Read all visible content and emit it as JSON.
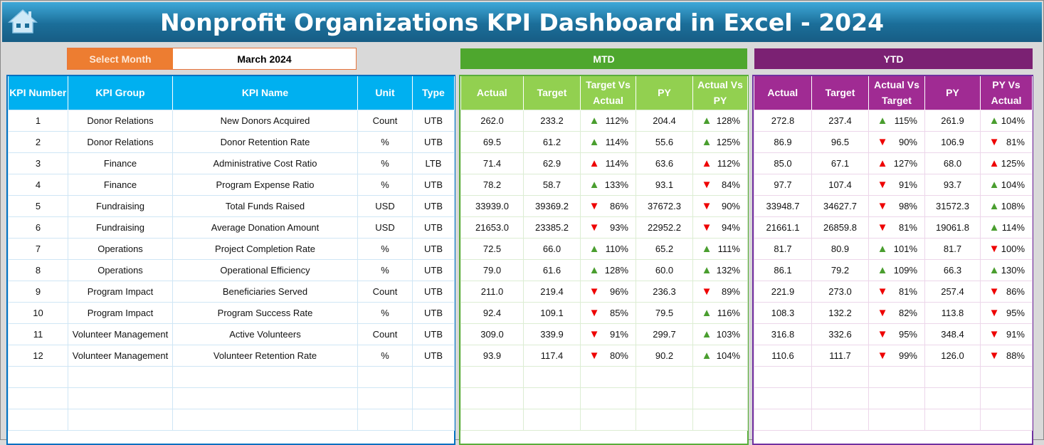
{
  "header": {
    "title": "Nonprofit Organizations KPI Dashboard in Excel - 2024",
    "home_icon": "home-icon"
  },
  "selector": {
    "label": "Select Month",
    "value": "March 2024"
  },
  "sections": {
    "mtd": "MTD",
    "ytd": "YTD"
  },
  "colors": {
    "title_bar": "#1b6e99",
    "select_label": "#ed7d31",
    "mtd_band": "#4ea72e",
    "mtd_header": "#92d050",
    "ytd_band": "#7b2173",
    "ytd_header": "#a02b93",
    "kpi_header": "#00b0f0",
    "arrow_green": "#4a9e2f",
    "arrow_red": "#e00000"
  },
  "kpi_columns": [
    "KPI Number",
    "KPI Group",
    "KPI Name",
    "Unit",
    "Type"
  ],
  "mtd_columns": [
    "Actual",
    "Target",
    "Target Vs Actual",
    "PY",
    "Actual Vs PY"
  ],
  "ytd_columns": [
    "Actual",
    "Target",
    "Actual Vs Target",
    "PY",
    "PY Vs Actual"
  ],
  "kpis": [
    [
      "1",
      "Donor Relations",
      "New Donors Acquired",
      "Count",
      "UTB"
    ],
    [
      "2",
      "Donor Relations",
      "Donor Retention Rate",
      "%",
      "UTB"
    ],
    [
      "3",
      "Finance",
      "Administrative Cost Ratio",
      "%",
      "LTB"
    ],
    [
      "4",
      "Finance",
      "Program Expense Ratio",
      "%",
      "UTB"
    ],
    [
      "5",
      "Fundraising",
      "Total Funds Raised",
      "USD",
      "UTB"
    ],
    [
      "6",
      "Fundraising",
      "Average Donation Amount",
      "USD",
      "UTB"
    ],
    [
      "7",
      "Operations",
      "Project Completion Rate",
      "%",
      "UTB"
    ],
    [
      "8",
      "Operations",
      "Operational Efficiency",
      "%",
      "UTB"
    ],
    [
      "9",
      "Program Impact",
      "Beneficiaries Served",
      "Count",
      "UTB"
    ],
    [
      "10",
      "Program Impact",
      "Program Success Rate",
      "%",
      "UTB"
    ],
    [
      "11",
      "Volunteer Management",
      "Active Volunteers",
      "Count",
      "UTB"
    ],
    [
      "12",
      "Volunteer Management",
      "Volunteer Retention Rate",
      "%",
      "UTB"
    ]
  ],
  "mtd": [
    {
      "actual": "262.0",
      "target": "233.2",
      "tva": "112%",
      "tva_icon": "up-green",
      "py": "204.4",
      "avp": "128%",
      "avp_icon": "up-green"
    },
    {
      "actual": "69.5",
      "target": "61.2",
      "tva": "114%",
      "tva_icon": "up-green",
      "py": "55.6",
      "avp": "125%",
      "avp_icon": "up-green"
    },
    {
      "actual": "71.4",
      "target": "62.9",
      "tva": "114%",
      "tva_icon": "up-red",
      "py": "63.6",
      "avp": "112%",
      "avp_icon": "up-red"
    },
    {
      "actual": "78.2",
      "target": "58.7",
      "tva": "133%",
      "tva_icon": "up-green",
      "py": "93.1",
      "avp": "84%",
      "avp_icon": "down-red"
    },
    {
      "actual": "33939.0",
      "target": "39369.2",
      "tva": "86%",
      "tva_icon": "down-red",
      "py": "37672.3",
      "avp": "90%",
      "avp_icon": "down-red"
    },
    {
      "actual": "21653.0",
      "target": "23385.2",
      "tva": "93%",
      "tva_icon": "down-red",
      "py": "22952.2",
      "avp": "94%",
      "avp_icon": "down-red"
    },
    {
      "actual": "72.5",
      "target": "66.0",
      "tva": "110%",
      "tva_icon": "up-green",
      "py": "65.2",
      "avp": "111%",
      "avp_icon": "up-green"
    },
    {
      "actual": "79.0",
      "target": "61.6",
      "tva": "128%",
      "tva_icon": "up-green",
      "py": "60.0",
      "avp": "132%",
      "avp_icon": "up-green"
    },
    {
      "actual": "211.0",
      "target": "219.4",
      "tva": "96%",
      "tva_icon": "down-red",
      "py": "236.3",
      "avp": "89%",
      "avp_icon": "down-red"
    },
    {
      "actual": "92.4",
      "target": "109.1",
      "tva": "85%",
      "tva_icon": "down-red",
      "py": "79.5",
      "avp": "116%",
      "avp_icon": "up-green"
    },
    {
      "actual": "309.0",
      "target": "339.9",
      "tva": "91%",
      "tva_icon": "down-red",
      "py": "299.7",
      "avp": "103%",
      "avp_icon": "up-green"
    },
    {
      "actual": "93.9",
      "target": "117.4",
      "tva": "80%",
      "tva_icon": "down-red",
      "py": "90.2",
      "avp": "104%",
      "avp_icon": "up-green"
    }
  ],
  "ytd": [
    {
      "actual": "272.8",
      "target": "237.4",
      "tva": "115%",
      "tva_icon": "up-green",
      "py": "261.9",
      "avp": "104%",
      "avp_icon": "up-green"
    },
    {
      "actual": "86.9",
      "target": "96.5",
      "tva": "90%",
      "tva_icon": "down-red",
      "py": "106.9",
      "avp": "81%",
      "avp_icon": "down-red"
    },
    {
      "actual": "85.0",
      "target": "67.1",
      "tva": "127%",
      "tva_icon": "up-red",
      "py": "68.0",
      "avp": "125%",
      "avp_icon": "up-red"
    },
    {
      "actual": "97.7",
      "target": "107.4",
      "tva": "91%",
      "tva_icon": "down-red",
      "py": "93.7",
      "avp": "104%",
      "avp_icon": "up-green"
    },
    {
      "actual": "33948.7",
      "target": "34627.7",
      "tva": "98%",
      "tva_icon": "down-red",
      "py": "31572.3",
      "avp": "108%",
      "avp_icon": "up-green"
    },
    {
      "actual": "21661.1",
      "target": "26859.8",
      "tva": "81%",
      "tva_icon": "down-red",
      "py": "19061.8",
      "avp": "114%",
      "avp_icon": "up-green"
    },
    {
      "actual": "81.7",
      "target": "80.9",
      "tva": "101%",
      "tva_icon": "up-green",
      "py": "81.7",
      "avp": "100%",
      "avp_icon": "down-red"
    },
    {
      "actual": "86.1",
      "target": "79.2",
      "tva": "109%",
      "tva_icon": "up-green",
      "py": "66.3",
      "avp": "130%",
      "avp_icon": "up-green"
    },
    {
      "actual": "221.9",
      "target": "273.0",
      "tva": "81%",
      "tva_icon": "down-red",
      "py": "257.4",
      "avp": "86%",
      "avp_icon": "down-red"
    },
    {
      "actual": "108.3",
      "target": "132.2",
      "tva": "82%",
      "tva_icon": "down-red",
      "py": "113.8",
      "avp": "95%",
      "avp_icon": "down-red"
    },
    {
      "actual": "316.8",
      "target": "332.6",
      "tva": "95%",
      "tva_icon": "down-red",
      "py": "348.4",
      "avp": "91%",
      "avp_icon": "down-red"
    },
    {
      "actual": "110.6",
      "target": "111.7",
      "tva": "99%",
      "tva_icon": "down-red",
      "py": "126.0",
      "avp": "88%",
      "avp_icon": "down-red"
    }
  ]
}
